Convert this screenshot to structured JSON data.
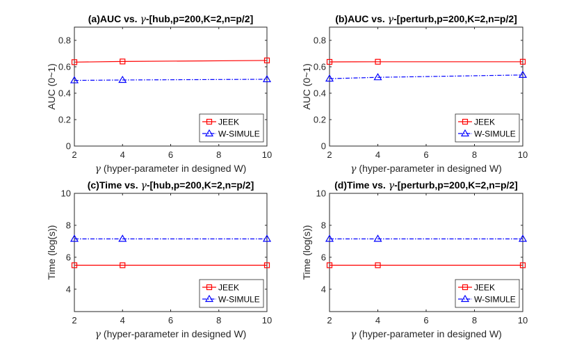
{
  "chart_data": [
    {
      "type": "line",
      "title_prefix": "(a)AUC vs. ",
      "title_symbol": "γ",
      "title_suffix": "-[hub,p=200,K=2,n=p/2]",
      "xlabel_symbol": "γ",
      "xlabel_text": " (hyper-parameter in designed W)",
      "ylabel": "AUC (0~1)",
      "x": [
        2,
        4,
        10
      ],
      "xticks": [
        2,
        4,
        6,
        8,
        10
      ],
      "yticks": [
        0,
        0.2,
        0.4,
        0.6,
        0.8
      ],
      "xlim": [
        2,
        10
      ],
      "ylim": [
        0,
        0.9
      ],
      "legend_position": "bottom-right",
      "series": [
        {
          "name": "JEEK",
          "values": [
            0.635,
            0.64,
            0.648
          ],
          "color": "#ff0000",
          "marker": "square",
          "line_style": "solid"
        },
        {
          "name": "W-SIMULE",
          "values": [
            0.497,
            0.5,
            0.505
          ],
          "color": "#0000ff",
          "marker": "triangle",
          "line_style": "dash-dot"
        }
      ]
    },
    {
      "type": "line",
      "title_prefix": "(b)AUC vs. ",
      "title_symbol": "γ",
      "title_suffix": "-[perturb,p=200,K=2,n=p/2]",
      "xlabel_symbol": "γ",
      "xlabel_text": " (hyper-parameter in designed W)",
      "ylabel": "AUC (0~1)",
      "x": [
        2,
        4,
        10
      ],
      "xticks": [
        2,
        4,
        6,
        8,
        10
      ],
      "yticks": [
        0,
        0.2,
        0.4,
        0.6,
        0.8
      ],
      "xlim": [
        2,
        10
      ],
      "ylim": [
        0,
        0.9
      ],
      "legend_position": "bottom-right",
      "series": [
        {
          "name": "JEEK",
          "values": [
            0.637,
            0.638,
            0.638
          ],
          "color": "#ff0000",
          "marker": "square",
          "line_style": "solid"
        },
        {
          "name": "W-SIMULE",
          "values": [
            0.51,
            0.52,
            0.538
          ],
          "color": "#0000ff",
          "marker": "triangle",
          "line_style": "dash-dot"
        }
      ]
    },
    {
      "type": "line",
      "title_prefix": "(c)Time vs. ",
      "title_symbol": "γ",
      "title_suffix": "-[hub,p=200,K=2,n=p/2]",
      "xlabel_symbol": "γ",
      "xlabel_text": " (hyper-parameter in designed W)",
      "ylabel": "Time (log(s))",
      "x": [
        2,
        4,
        10
      ],
      "xticks": [
        2,
        4,
        6,
        8,
        10
      ],
      "yticks": [
        4,
        6,
        8,
        10
      ],
      "xlim": [
        2,
        10
      ],
      "ylim": [
        2.6,
        10
      ],
      "legend_position": "bottom-right",
      "series": [
        {
          "name": "JEEK",
          "values": [
            5.5,
            5.5,
            5.5
          ],
          "color": "#ff0000",
          "marker": "square",
          "line_style": "solid"
        },
        {
          "name": "W-SIMULE",
          "values": [
            7.15,
            7.15,
            7.15
          ],
          "color": "#0000ff",
          "marker": "triangle",
          "line_style": "dash-dot"
        }
      ]
    },
    {
      "type": "line",
      "title_prefix": "(d)Time vs. ",
      "title_symbol": "γ",
      "title_suffix": "-[perturb,p=200,K=2,n=p/2]",
      "xlabel_symbol": "γ",
      "xlabel_text": " (hyper-parameter in designed W)",
      "ylabel": "Time (log(s))",
      "x": [
        2,
        4,
        10
      ],
      "xticks": [
        2,
        4,
        6,
        8,
        10
      ],
      "yticks": [
        4,
        6,
        8,
        10
      ],
      "xlim": [
        2,
        10
      ],
      "ylim": [
        2.6,
        10
      ],
      "legend_position": "bottom-right",
      "series": [
        {
          "name": "JEEK",
          "values": [
            5.5,
            5.5,
            5.5
          ],
          "color": "#ff0000",
          "marker": "square",
          "line_style": "solid"
        },
        {
          "name": "W-SIMULE",
          "values": [
            7.15,
            7.15,
            7.15
          ],
          "color": "#0000ff",
          "marker": "triangle",
          "line_style": "dash-dot"
        }
      ]
    }
  ]
}
